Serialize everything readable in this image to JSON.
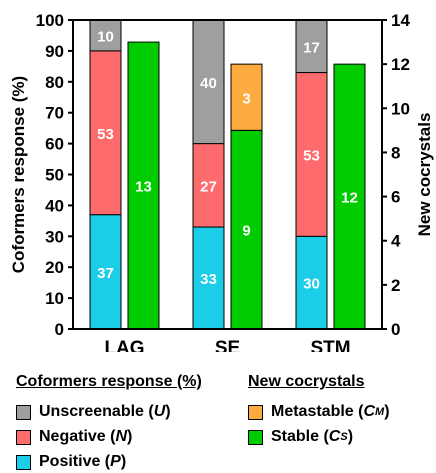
{
  "chart_data": {
    "type": "bar",
    "categories": [
      "LAG",
      "SE",
      "STM"
    ],
    "left_axis": {
      "label": "Coformers response (%)",
      "ylim": [
        0,
        100
      ],
      "ticks": [
        0,
        10,
        20,
        30,
        40,
        50,
        60,
        70,
        80,
        90,
        100
      ]
    },
    "right_axis": {
      "label": "New cocrystals",
      "ylim": [
        0,
        14
      ],
      "ticks": [
        0,
        2,
        4,
        6,
        8,
        10,
        12,
        14
      ]
    },
    "stacked_series": [
      {
        "name": "Positive",
        "symbol": "P",
        "color": "#1ccde8",
        "values": [
          37,
          33,
          30
        ]
      },
      {
        "name": "Negative",
        "symbol": "N",
        "color": "#fe6b6c",
        "values": [
          53,
          27,
          53
        ]
      },
      {
        "name": "Unscreenable",
        "symbol": "U",
        "color": "#9f9f9f",
        "values": [
          10,
          40,
          17
        ]
      }
    ],
    "cocrystal_series": [
      {
        "name": "Stable",
        "symbol": "C",
        "subscript": "S",
        "color": "#00cc00",
        "values": [
          13,
          9,
          12
        ]
      },
      {
        "name": "Metastable",
        "symbol": "C",
        "subscript": "M",
        "color": "#fdab3f",
        "values": [
          0,
          3,
          0
        ]
      }
    ],
    "grid": false
  },
  "legend": {
    "response_title": "Coformers response (%)",
    "cocrystals_title": "New cocrystals",
    "unscreenable": {
      "label": "Unscreenable (",
      "symbol": "U",
      "close": ")"
    },
    "negative": {
      "label": "Negative (",
      "symbol": "N",
      "close": ")"
    },
    "positive": {
      "label": "Positive (",
      "symbol": "P",
      "close": ")"
    },
    "metastable": {
      "label": "Metastable (",
      "symbol": "C",
      "sub": "M",
      "close": ")"
    },
    "stable": {
      "label": "Stable (",
      "symbol": "C",
      "sub": "S",
      "close": ")"
    }
  }
}
